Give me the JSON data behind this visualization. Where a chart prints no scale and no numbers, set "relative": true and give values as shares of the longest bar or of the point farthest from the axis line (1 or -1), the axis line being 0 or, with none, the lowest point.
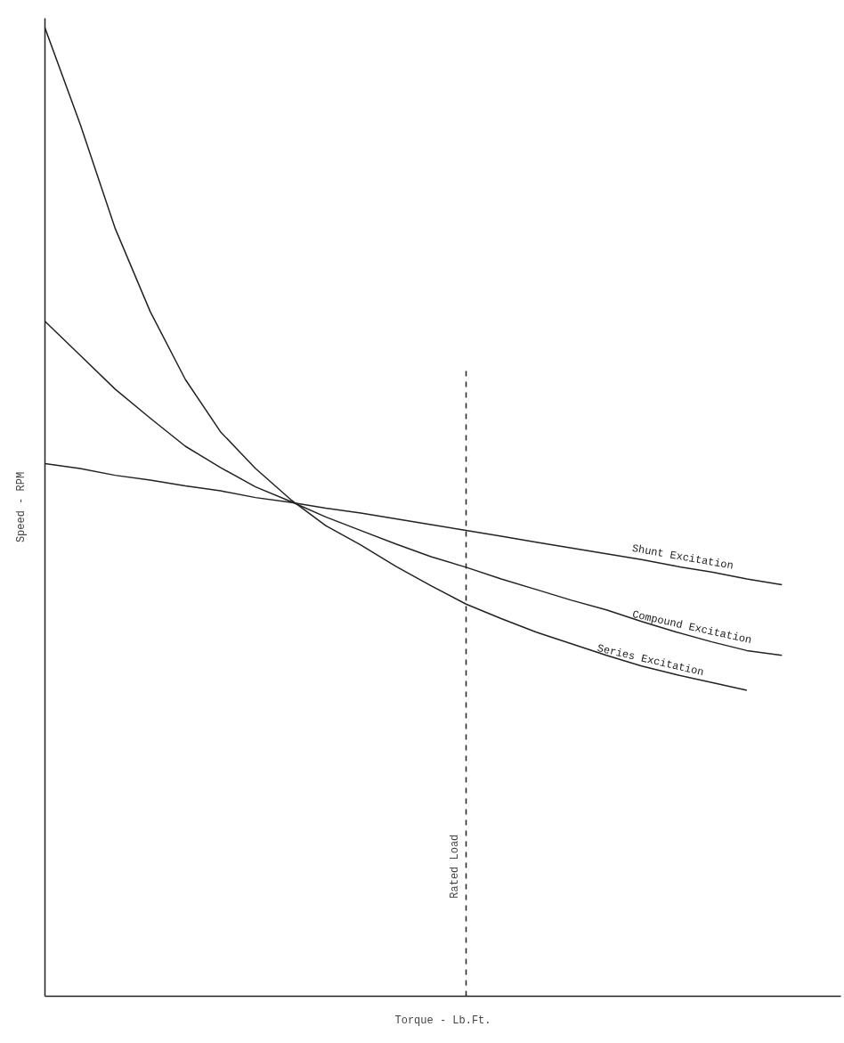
{
  "chart_data": {
    "type": "line",
    "relative": true,
    "xlabel": "Torque - Lb.Ft.",
    "ylabel": "Speed - RPM",
    "line_style": "solid",
    "categories": [
      null,
      null,
      null,
      null,
      null,
      null,
      null,
      null,
      null,
      null,
      null,
      null,
      null,
      null,
      null,
      null,
      null,
      null,
      null,
      null,
      null,
      null
    ],
    "series": [
      {
        "name": "Shunt Excitation",
        "color": "#222222",
        "values": [
          0.55,
          0.545,
          0.538,
          0.533,
          0.527,
          0.522,
          0.515,
          0.51,
          0.504,
          0.499,
          0.493,
          0.487,
          0.481,
          0.475,
          0.469,
          0.463,
          0.457,
          0.451,
          0.444,
          0.438,
          0.431,
          0.425
        ]
      },
      {
        "name": "Compound Excitation",
        "color": "#222222",
        "values": [
          0.697,
          0.662,
          0.627,
          0.597,
          0.568,
          0.546,
          0.526,
          0.511,
          0.495,
          0.481,
          0.467,
          0.454,
          0.443,
          0.431,
          0.42,
          0.409,
          0.399,
          0.387,
          0.376,
          0.366,
          0.357,
          0.352
        ]
      },
      {
        "name": "Series Excitation",
        "color": "#222222",
        "values": [
          1.0,
          0.901,
          0.793,
          0.707,
          0.637,
          0.583,
          0.545,
          0.513,
          0.486,
          0.466,
          0.444,
          0.424,
          0.405,
          0.39,
          0.376,
          0.364,
          0.352,
          0.341,
          0.332,
          0.324,
          0.316,
          null
        ]
      }
    ],
    "annotations": [
      "Rated Load"
    ]
  }
}
